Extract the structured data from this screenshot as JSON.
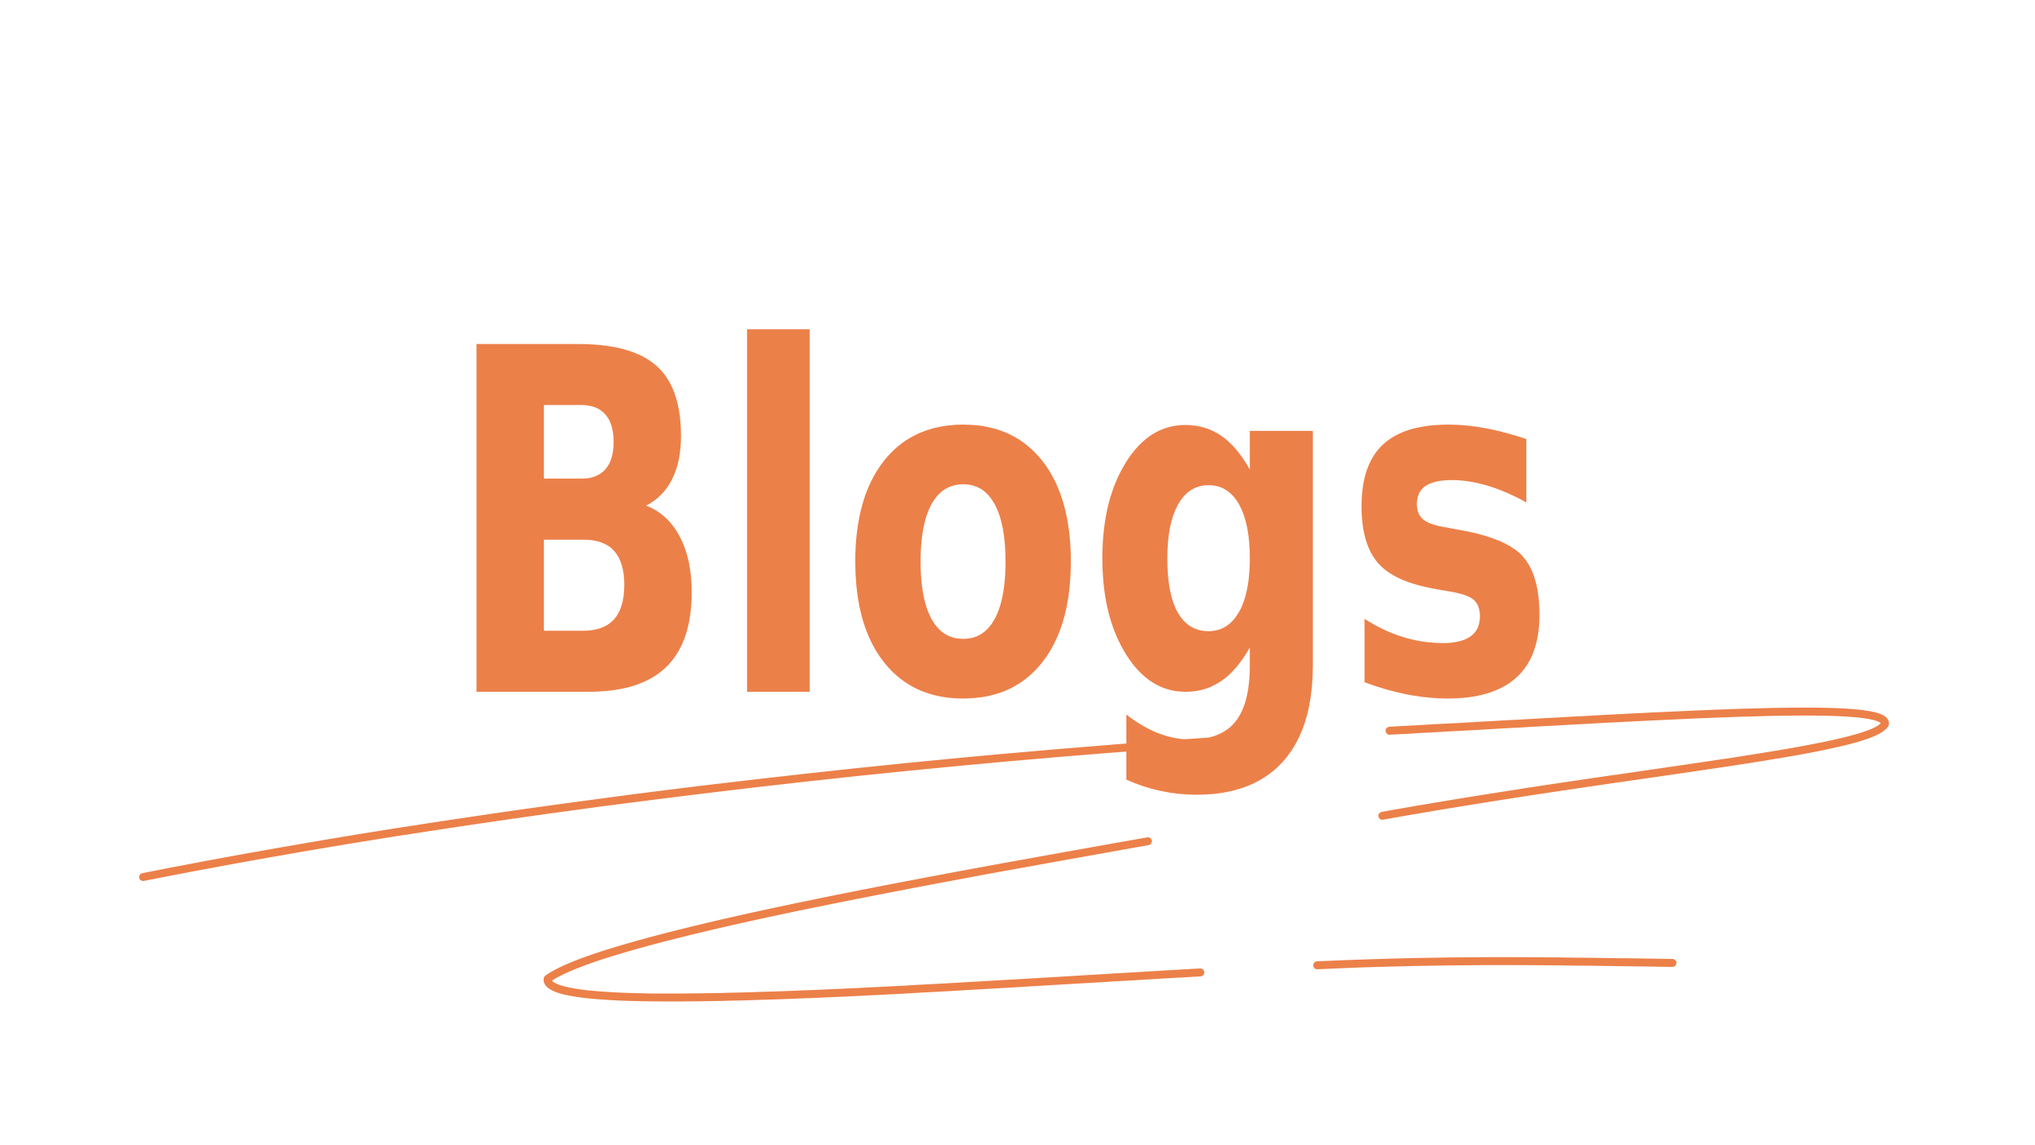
{
  "title": "Blogs"
}
